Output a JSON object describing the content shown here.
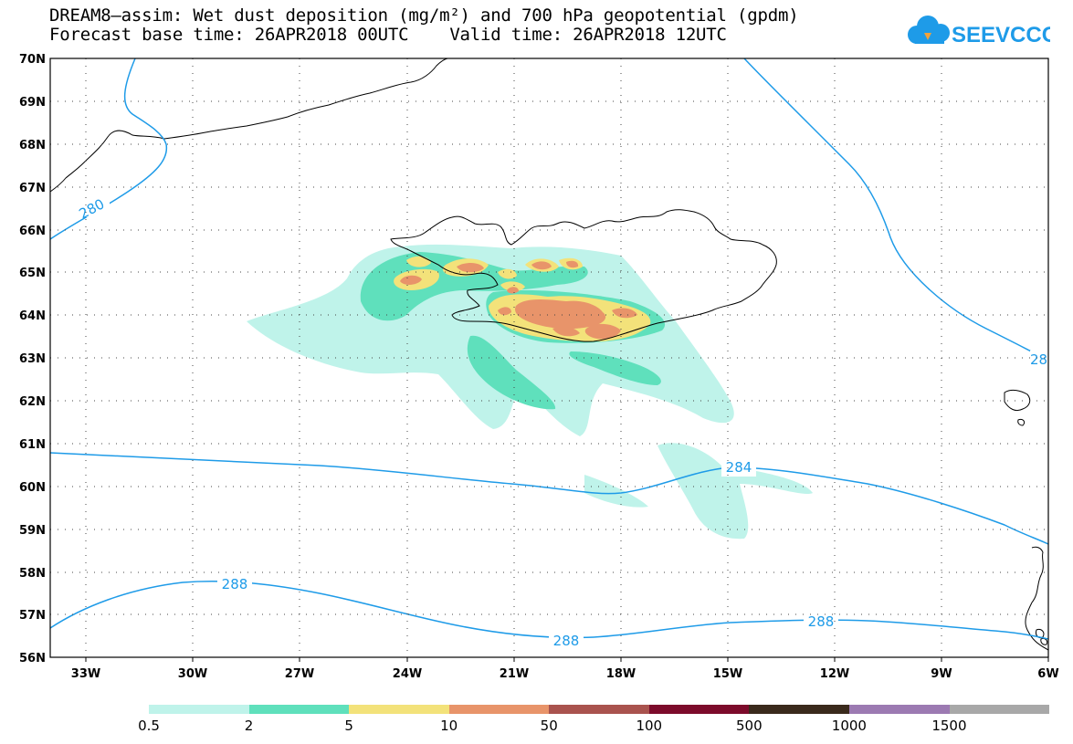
{
  "title_line1": "DREAM8–assim: Wet dust deposition (mg/m²) and 700 hPa geopotential (gpdm)",
  "title_line2": "Forecast base time: 26APR2018 00UTC    Valid time: 26APR2018 12UTC",
  "logo_text": "SEEVCCC",
  "lat_ticks": [
    "70N",
    "69N",
    "68N",
    "67N",
    "66N",
    "65N",
    "64N",
    "63N",
    "62N",
    "61N",
    "60N",
    "59N",
    "58N",
    "57N",
    "56N"
  ],
  "lon_ticks": [
    "33W",
    "30W",
    "27W",
    "24W",
    "21W",
    "18W",
    "15W",
    "12W",
    "9W",
    "6W"
  ],
  "contour_labels": [
    "280",
    "284",
    "288",
    "288",
    "288",
    "28"
  ],
  "colorbar": {
    "colors": [
      "#bff3ea",
      "#5fe0bc",
      "#f3e27a",
      "#e8946a",
      "#a9534e",
      "#7c0b2b",
      "#3a2a1c",
      "#9c7ab2",
      "#a8a8a8"
    ],
    "labels": [
      "0.5",
      "2",
      "5",
      "10",
      "50",
      "100",
      "500",
      "1000",
      "1500"
    ]
  }
}
